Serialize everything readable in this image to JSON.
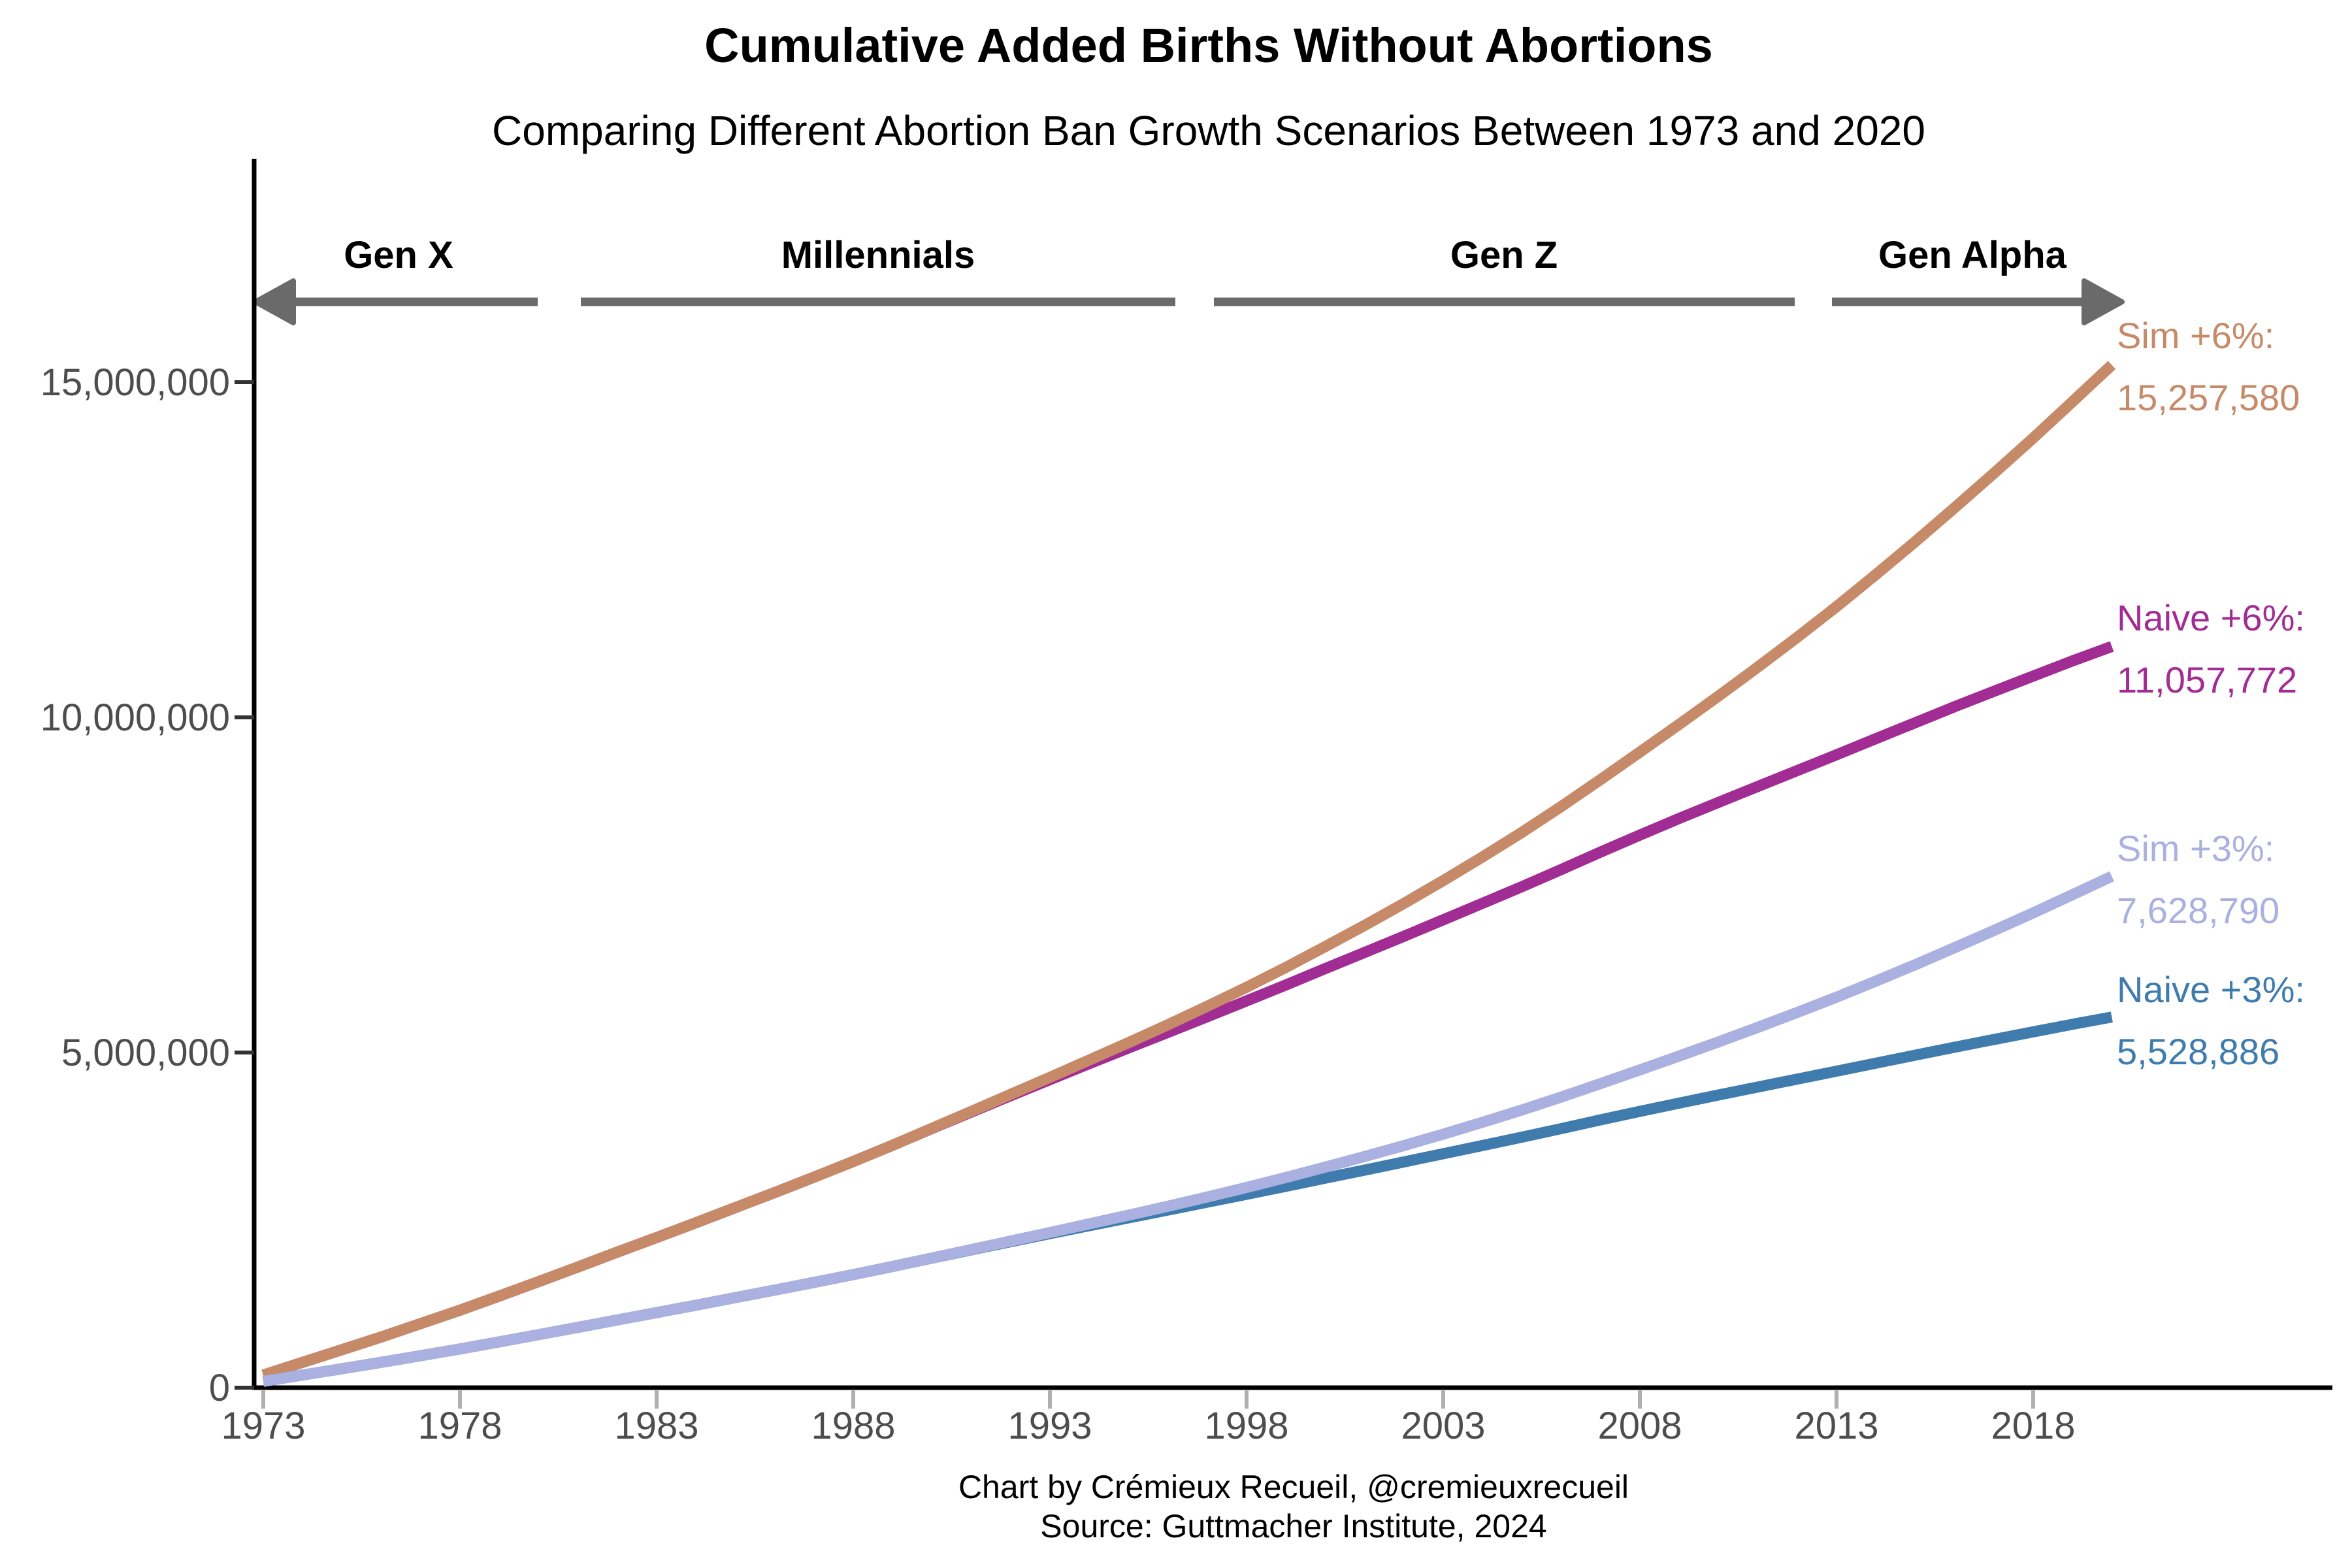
{
  "title": "Cumulative Added Births Without Abortions",
  "subtitle": "Comparing Different Abortion Ban Growth Scenarios Between 1973 and 2020",
  "caption": {
    "line1": "Chart by Crémieux Recueil, @cremieuxrecueil",
    "line2": "Source: Guttmacher Institute, 2024"
  },
  "generations": [
    {
      "label": "Gen X",
      "arrow": "left"
    },
    {
      "label": "Millennials",
      "arrow": "none"
    },
    {
      "label": "Gen Z",
      "arrow": "none"
    },
    {
      "label": "Gen Alpha",
      "arrow": "right"
    }
  ],
  "colors": {
    "background": "#FFFFFF",
    "axis_line": "#000000",
    "tick_label": "#4D4D4D",
    "x_tick_mark": "#B0B0B0",
    "y_tick_mark": "#333333",
    "generation_arrow": "#6A6A6A",
    "sim_6pct": "#C68A68",
    "naive_6pct": "#A12C94",
    "sim_3pct": "#AAB1E0",
    "naive_3pct": "#3F7CAD"
  },
  "chart_data": {
    "type": "line",
    "title": "Cumulative Added Births Without Abortions",
    "subtitle": "Comparing Different Abortion Ban Growth Scenarios Between 1973 and 2020",
    "xlabel": "",
    "ylabel": "",
    "grid": false,
    "legend_position": "right-end-annotations",
    "xlim": [
      1973,
      2020
    ],
    "ylim": [
      0,
      15800000
    ],
    "x_ticks": [
      1973,
      1978,
      1983,
      1988,
      1993,
      1998,
      2003,
      2008,
      2013,
      2018
    ],
    "x_tick_labels": [
      "1973",
      "1978",
      "1983",
      "1988",
      "1993",
      "1998",
      "2003",
      "2008",
      "2013",
      "2018"
    ],
    "y_ticks": [
      0,
      5000000,
      10000000,
      15000000
    ],
    "y_tick_labels": [
      "0",
      "5,000,000",
      "10,000,000",
      "15,000,000"
    ],
    "x_years": [
      1973,
      1974,
      1975,
      1976,
      1977,
      1978,
      1979,
      1980,
      1981,
      1982,
      1983,
      1984,
      1985,
      1986,
      1987,
      1988,
      1989,
      1990,
      1991,
      1992,
      1993,
      1994,
      1995,
      1996,
      1997,
      1998,
      1999,
      2000,
      2001,
      2002,
      2003,
      2004,
      2005,
      2006,
      2007,
      2008,
      2009,
      2010,
      2011,
      2012,
      2013,
      2014,
      2015,
      2016,
      2017,
      2018,
      2019,
      2020
    ],
    "series": [
      {
        "id": "sim-6pct",
        "name": "Sim +6%",
        "end_label": "Sim +6%:",
        "end_value": 15257580,
        "end_value_text": "15,257,580",
        "color": "#C68A68",
        "values": [
          188000,
          378000,
          566000,
          756000,
          956000,
          1156000,
          1366000,
          1582000,
          1800000,
          2022000,
          2240000,
          2460000,
          2686000,
          2910000,
          3140000,
          3374000,
          3616600,
          3869200,
          4121000,
          4374800,
          4629600,
          4888000,
          5148000,
          5414000,
          5690000,
          5974000,
          6270000,
          6580000,
          6896000,
          7224000,
          7564000,
          7918000,
          8284000,
          8670000,
          9072000,
          9482000,
          9896000,
          10318000,
          10750000,
          11194000,
          11652000,
          12130000,
          12620000,
          13126000,
          13640000,
          14166000,
          14710000,
          15257580
        ]
      },
      {
        "id": "naive-6pct",
        "name": "Naive +6%",
        "end_label": "Naive +6%:",
        "end_value": 11057772,
        "end_value_text": "11,057,772",
        "color": "#A12C94",
        "values": [
          188000,
          378000,
          566000,
          756000,
          956000,
          1156000,
          1366000,
          1582000,
          1800000,
          2022000,
          2240000,
          2460000,
          2686000,
          2910000,
          3140000,
          3374000,
          3616000,
          3866000,
          4112000,
          4356000,
          4596000,
          4834000,
          5068000,
          5300000,
          5534000,
          5770000,
          6008000,
          6252000,
          6492000,
          6734000,
          6980000,
          7226000,
          7474000,
          7730000,
          7990000,
          8244000,
          8492000,
          8732000,
          8970000,
          9206000,
          9442000,
          9682000,
          9920000,
          10158000,
          10388000,
          10616000,
          10842000,
          11057772
        ]
      },
      {
        "id": "sim-3pct",
        "name": "Sim +3%",
        "end_label": "Sim +3%:",
        "end_value": 7628790,
        "end_value_text": "7,628,790",
        "color": "#AAB1E0",
        "values": [
          94000,
          189000,
          283000,
          378000,
          478000,
          578000,
          683000,
          791000,
          900000,
          1011000,
          1120000,
          1230000,
          1343000,
          1455000,
          1570000,
          1687000,
          1808300,
          1934600,
          2060500,
          2187400,
          2314800,
          2444000,
          2574000,
          2707000,
          2845000,
          2987000,
          3135000,
          3290000,
          3448000,
          3612000,
          3782000,
          3959000,
          4142000,
          4335000,
          4536000,
          4741000,
          4948000,
          5159000,
          5375000,
          5597000,
          5826000,
          6065000,
          6310000,
          6563000,
          6820000,
          7083000,
          7355000,
          7628790
        ]
      },
      {
        "id": "naive-3pct",
        "name": "Naive +3%",
        "end_label": "Naive +3%:",
        "end_value": 5528886,
        "end_value_text": "5,528,886",
        "color": "#3F7CAD",
        "values": [
          94000,
          189000,
          283000,
          378000,
          478000,
          578000,
          683000,
          791000,
          900000,
          1011000,
          1120000,
          1230000,
          1343000,
          1455000,
          1570000,
          1687000,
          1808000,
          1933000,
          2056000,
          2178000,
          2298000,
          2417000,
          2534000,
          2650000,
          2767000,
          2885000,
          3004000,
          3126000,
          3246000,
          3367000,
          3490000,
          3613000,
          3737000,
          3865000,
          3995000,
          4122000,
          4246000,
          4366000,
          4485000,
          4603000,
          4721000,
          4841000,
          4960000,
          5079000,
          5194000,
          5308000,
          5421000,
          5528886
        ]
      }
    ]
  }
}
